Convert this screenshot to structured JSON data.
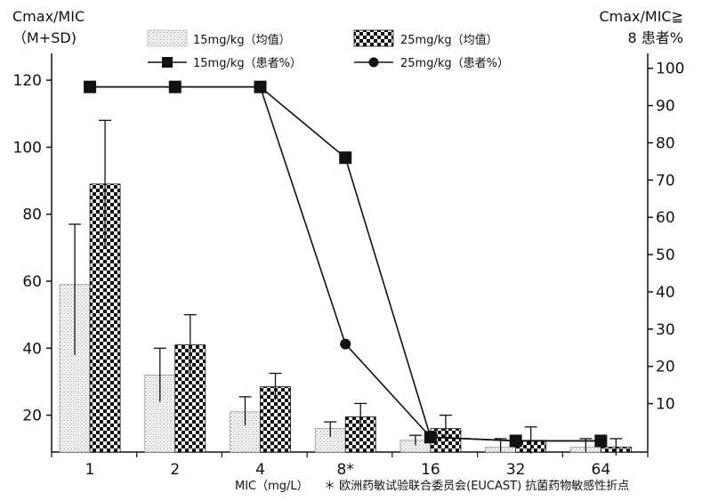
{
  "chart_data": {
    "type": "bar",
    "categories": [
      "1",
      "2",
      "4",
      "8*",
      "16",
      "32",
      "64"
    ],
    "y_left": {
      "label_line1": "Cmax/MIC",
      "label_line2": "（M+SD)",
      "ticks": [
        "20",
        "40",
        "60",
        "80",
        "100",
        "120"
      ],
      "tick_values": [
        20,
        40,
        60,
        80,
        100,
        120
      ],
      "ylim": [
        9,
        128
      ]
    },
    "y_right": {
      "label_line1": "Cmax/MIC≧",
      "label_line2": "8 患者%",
      "ticks": [
        "10",
        "20",
        "30",
        "40",
        "50",
        "60",
        "70",
        "80",
        "90",
        "100"
      ],
      "tick_values": [
        10,
        20,
        30,
        40,
        50,
        60,
        70,
        80,
        90,
        100
      ],
      "ylim": [
        -3,
        104
      ]
    },
    "x_label": "MIC（mg/L）",
    "footnote": "＊ 欧洲药敏试验联合委员会(EUCAST) 抗菌药物敏感性折点",
    "bar_series": [
      {
        "name": "15mg/kg（均值）",
        "pattern": "light-speckle",
        "values": [
          59,
          32,
          21,
          16,
          12.5,
          10.5,
          10.5
        ],
        "error_upper": [
          77,
          40,
          25.5,
          18,
          14,
          13,
          13
        ],
        "error_lower": [
          38,
          24,
          17,
          13.5,
          11,
          9,
          9
        ]
      },
      {
        "name": "25mg/kg（均值）",
        "pattern": "checker",
        "values": [
          89,
          41,
          28.5,
          19.5,
          16,
          12.5,
          10.5
        ],
        "error_upper": [
          108,
          50,
          32.5,
          23.5,
          20,
          16.5,
          13
        ],
        "error_lower": [
          70,
          32,
          24.5,
          15.5,
          12,
          8.5,
          8
        ]
      }
    ],
    "line_series": [
      {
        "name": "15mg/kg（患者%）",
        "marker": "square",
        "values": [
          95,
          95,
          95,
          76,
          1,
          0,
          0
        ]
      },
      {
        "name": "25mg/kg（患者%）",
        "marker": "circle",
        "values": [
          95,
          95,
          95,
          26,
          1,
          0,
          0
        ]
      }
    ],
    "legend_placement": "top-center",
    "grid": false
  }
}
